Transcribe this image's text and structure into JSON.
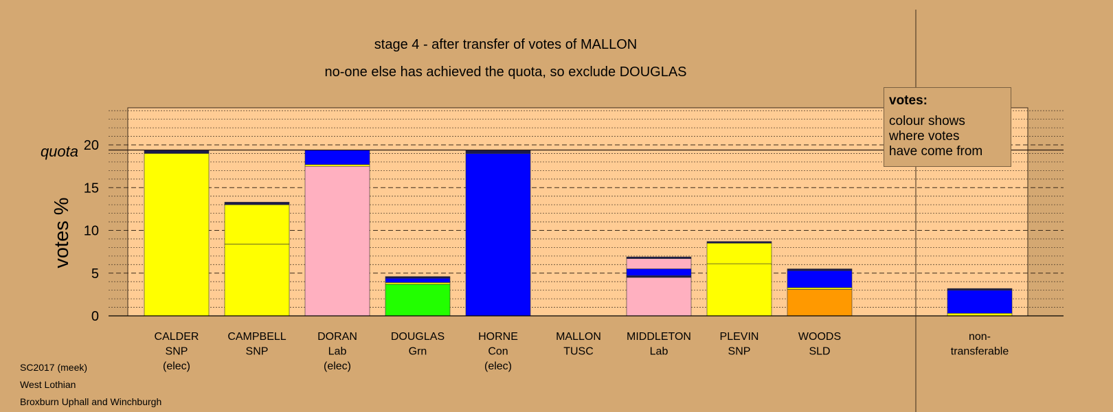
{
  "chart_data": {
    "type": "bar",
    "title": "stage 4 - after transfer of votes of MALLON",
    "subtitle": "no-one else has achieved the quota, so exclude DOUGLAS",
    "ylabel": "votes %",
    "ylim": [
      0,
      24.2
    ],
    "yticks": [
      "0",
      "5",
      "10",
      "15",
      "20"
    ],
    "quota_label": "quota",
    "quota_value": 19.4,
    "colors": {
      "snp": "#FFFF00",
      "lab": "#FFB0C0",
      "con": "#0000FF",
      "grn": "#22FF00",
      "sld": "#FF9900",
      "tusc": "#1A1A4A"
    },
    "categories": [
      {
        "lines": [
          "CALDER",
          "SNP",
          "(elec)"
        ],
        "segments": [
          {
            "value": 19.0,
            "color": "#FFFF00"
          },
          {
            "value": 0.4,
            "color": "#1A1A4A"
          }
        ]
      },
      {
        "lines": [
          "CAMPBELL",
          "SNP"
        ],
        "segments": [
          {
            "value": 8.4,
            "color": "#FFFF00"
          },
          {
            "value": 4.6,
            "color": "#FFFF00"
          },
          {
            "value": 0.3,
            "color": "#1A1A4A"
          }
        ]
      },
      {
        "lines": [
          "DORAN",
          "Lab",
          "(elec)"
        ],
        "segments": [
          {
            "value": 17.5,
            "color": "#FFB0C0"
          },
          {
            "value": 0.2,
            "color": "#FFFF00"
          },
          {
            "value": 1.7,
            "color": "#0000FF"
          }
        ]
      },
      {
        "lines": [
          "DOUGLAS",
          "Grn"
        ],
        "segments": [
          {
            "value": 3.7,
            "color": "#22FF00"
          },
          {
            "value": 0.2,
            "color": "#FFFF00"
          },
          {
            "value": 0.5,
            "color": "#0000FF"
          },
          {
            "value": 0.2,
            "color": "#1A1A4A"
          }
        ]
      },
      {
        "lines": [
          "HORNE",
          "Con",
          "(elec)"
        ],
        "segments": [
          {
            "value": 19.0,
            "color": "#0000FF"
          },
          {
            "value": 0.4,
            "color": "#1A1A4A"
          }
        ]
      },
      {
        "lines": [
          "MALLON",
          "TUSC"
        ],
        "segments": []
      },
      {
        "lines": [
          "MIDDLETON",
          "Lab"
        ],
        "segments": [
          {
            "value": 4.5,
            "color": "#FFB0C0"
          },
          {
            "value": 0.2,
            "color": "#1A1A4A"
          },
          {
            "value": 0.8,
            "color": "#0000FF"
          },
          {
            "value": 1.2,
            "color": "#FFB0C0"
          },
          {
            "value": 0.2,
            "color": "#1A1A4A"
          }
        ]
      },
      {
        "lines": [
          "PLEVIN",
          "SNP"
        ],
        "segments": [
          {
            "value": 6.1,
            "color": "#FFFF00"
          },
          {
            "value": 2.4,
            "color": "#FFFF00"
          },
          {
            "value": 0.2,
            "color": "#1A1A4A"
          }
        ]
      },
      {
        "lines": [
          "WOODS",
          "SLD"
        ],
        "segments": [
          {
            "value": 3.1,
            "color": "#FF9900"
          },
          {
            "value": 0.2,
            "color": "#FFFF00"
          },
          {
            "value": 2.0,
            "color": "#0000FF"
          },
          {
            "value": 0.2,
            "color": "#1A1A4A"
          }
        ]
      },
      {
        "lines": [
          "non-",
          "transferable"
        ],
        "segments": [
          {
            "value": 0.3,
            "color": "#FFFF00"
          },
          {
            "value": 2.7,
            "color": "#0000FF"
          },
          {
            "value": 0.2,
            "color": "#1A1A4A"
          }
        ],
        "separated": true
      }
    ]
  },
  "legend": {
    "title": "votes:",
    "lines": [
      "colour shows",
      "where votes",
      "have come from"
    ]
  },
  "footer": {
    "line1": "SC2017 (meek)",
    "line2": "West Lothian",
    "line3": "Broxburn Uphall and Winchburgh"
  }
}
